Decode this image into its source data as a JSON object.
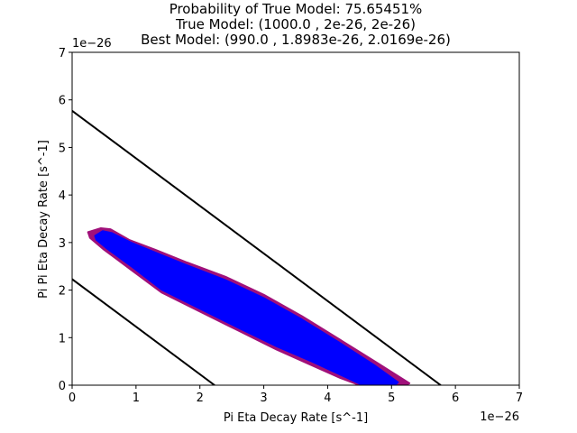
{
  "chart_data": {
    "type": "scatter",
    "title_lines": [
      "Probability of True Model: 75.65451%",
      "True Model: (1000.0 , 2e-26, 2e-26)",
      "Best Model: (990.0 , 1.8983e-26, 2.0169e-26)"
    ],
    "xlabel": "Pi Eta Decay Rate [s^-1]",
    "ylabel": "Pi Pi Eta Decay Rate [s^-1]",
    "x_offset_label": "1e−26",
    "y_offset_label": "1e−26",
    "xlim": [
      0,
      7
    ],
    "ylim": [
      0,
      7
    ],
    "xticks": [
      0,
      1,
      2,
      3,
      4,
      5,
      6,
      7
    ],
    "yticks": [
      0,
      1,
      2,
      3,
      4,
      5,
      6,
      7
    ],
    "xtick_labels": [
      "0",
      "1",
      "2",
      "3",
      "4",
      "5",
      "6",
      "7"
    ],
    "ytick_labels": [
      "0",
      "1",
      "2",
      "3",
      "4",
      "5",
      "6",
      "7"
    ],
    "lines": [
      {
        "x": [
          0,
          5.77
        ],
        "y": [
          5.77,
          0
        ],
        "color": "#000000"
      },
      {
        "x": [
          0,
          2.23
        ],
        "y": [
          2.23,
          0
        ],
        "color": "#000000"
      }
    ],
    "regions": [
      {
        "color": "#a0107a",
        "boundary": [
          [
            0.25,
            3.22
          ],
          [
            0.45,
            3.3
          ],
          [
            0.6,
            3.28
          ],
          [
            0.9,
            3.05
          ],
          [
            1.3,
            2.85
          ],
          [
            1.8,
            2.58
          ],
          [
            2.4,
            2.28
          ],
          [
            3.0,
            1.9
          ],
          [
            3.6,
            1.45
          ],
          [
            4.2,
            0.95
          ],
          [
            4.8,
            0.45
          ],
          [
            5.28,
            0.04
          ],
          [
            5.22,
            0.0
          ],
          [
            4.5,
            0.0
          ],
          [
            4.2,
            0.15
          ],
          [
            3.7,
            0.45
          ],
          [
            3.2,
            0.75
          ],
          [
            2.6,
            1.15
          ],
          [
            2.0,
            1.55
          ],
          [
            1.4,
            1.95
          ],
          [
            0.9,
            2.45
          ],
          [
            0.5,
            2.85
          ],
          [
            0.28,
            3.1
          ]
        ]
      },
      {
        "color": "#0000ff",
        "boundary": [
          [
            0.36,
            3.14
          ],
          [
            0.48,
            3.24
          ],
          [
            0.62,
            3.2
          ],
          [
            0.92,
            3.0
          ],
          [
            1.3,
            2.79
          ],
          [
            1.8,
            2.52
          ],
          [
            2.4,
            2.21
          ],
          [
            3.0,
            1.83
          ],
          [
            3.6,
            1.38
          ],
          [
            4.2,
            0.88
          ],
          [
            4.75,
            0.4
          ],
          [
            5.1,
            0.06
          ],
          [
            5.05,
            0.0
          ],
          [
            4.55,
            0.0
          ],
          [
            4.25,
            0.19
          ],
          [
            3.75,
            0.5
          ],
          [
            3.2,
            0.82
          ],
          [
            2.6,
            1.21
          ],
          [
            2.0,
            1.61
          ],
          [
            1.4,
            2.01
          ],
          [
            0.95,
            2.48
          ],
          [
            0.55,
            2.87
          ],
          [
            0.38,
            3.06
          ]
        ]
      }
    ],
    "grid": false,
    "legend": null
  }
}
